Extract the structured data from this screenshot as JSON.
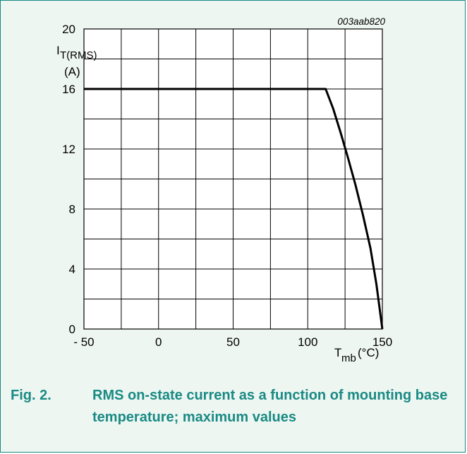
{
  "figure": {
    "code": "003aab820",
    "label": "Fig. 2.",
    "caption": "RMS on-state current as a function of mounting base temperature; maximum values"
  },
  "colors": {
    "border": "#1a8a84",
    "background": "#eef6f2",
    "caption": "#1a8a84",
    "line": "#000000",
    "grid": "#000000"
  },
  "chart_data": {
    "type": "line",
    "title": "",
    "ylabel": {
      "main": "I",
      "sub": "T(RMS)",
      "unit": "(A)"
    },
    "xlabel": {
      "main": "T",
      "sub": "mb",
      "unit": "(°C)"
    },
    "xlim": [
      -50,
      150
    ],
    "ylim": [
      0,
      20
    ],
    "x_ticks": [
      -50,
      0,
      50,
      100,
      150
    ],
    "x_tick_labels": [
      "- 50",
      "0",
      "50",
      "100",
      "150"
    ],
    "y_ticks": [
      0,
      4,
      8,
      12,
      16,
      20
    ],
    "y_tick_labels": [
      "0",
      "4",
      "8",
      "12",
      "16",
      "20"
    ],
    "x_grid": [
      -50,
      -25,
      0,
      25,
      50,
      75,
      100,
      125,
      150
    ],
    "y_grid": [
      0,
      2,
      4,
      6,
      8,
      10,
      12,
      14,
      16,
      18,
      20
    ],
    "grid": true,
    "series": [
      {
        "x": [
          -50,
          112,
          117,
          122,
          127,
          132,
          137,
          142,
          146,
          150
        ],
        "y": [
          16,
          16,
          14.7,
          13.1,
          11.4,
          9.6,
          7.6,
          5.4,
          3.0,
          0
        ]
      }
    ]
  }
}
